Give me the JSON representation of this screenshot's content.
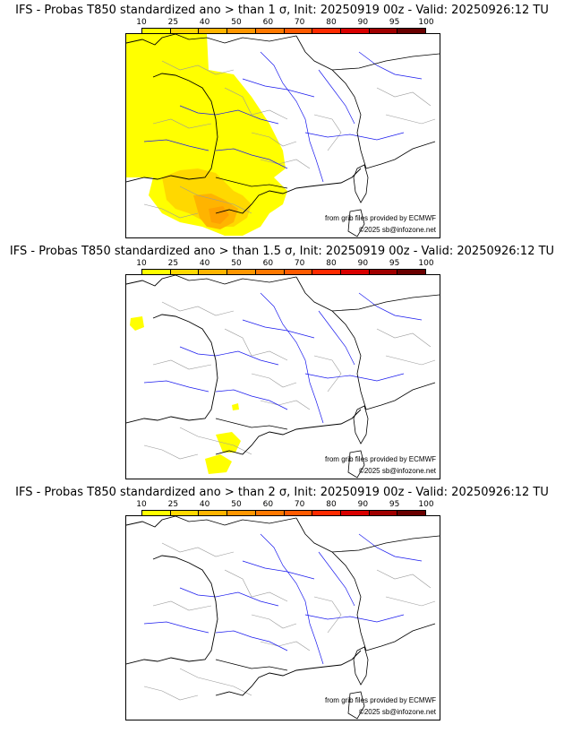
{
  "palette": [
    "#ffff00",
    "#ffd800",
    "#ffb400",
    "#ff9600",
    "#ff7800",
    "#ff5a00",
    "#ff2a00",
    "#d90000",
    "#a00000",
    "#6a0000"
  ],
  "colorbar_ticks": [
    "10",
    "25",
    "40",
    "50",
    "60",
    "70",
    "80",
    "90",
    "95",
    "100"
  ],
  "panels": [
    {
      "title": "IFS - Probas T850  standardized ano > than 1 σ, Init: 20250919 00z - Valid: 20250926:12 TU",
      "credit_source": "from grib files provided by ECMWF",
      "credit_copyright": "©2025 sb@infozone.net",
      "coverage": "large"
    },
    {
      "title": "IFS - Probas T850  standardized ano > than 1.5 σ, Init: 20250919 00z - Valid: 20250926:12 TU",
      "credit_source": "from grib files provided by ECMWF",
      "credit_copyright": "©2025 sb@infozone.net",
      "coverage": "small"
    },
    {
      "title": "IFS - Probas T850  standardized ano > than 2 σ, Init: 20250919 00z - Valid: 20250926:12 TU",
      "credit_source": "from grib files provided by ECMWF",
      "credit_copyright": "©2025 sb@infozone.net",
      "coverage": "none"
    }
  ]
}
